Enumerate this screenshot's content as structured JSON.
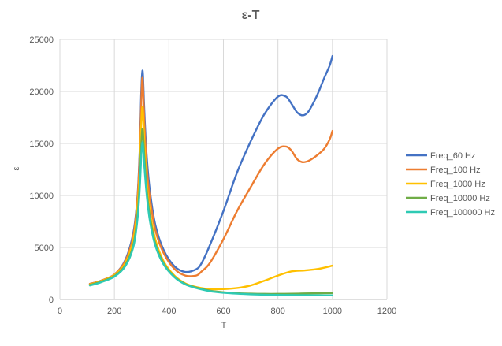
{
  "chart_data": {
    "type": "scatter",
    "title": "ε-T",
    "xlabel": "T",
    "ylabel": "ε",
    "xlim": [
      0,
      1200
    ],
    "ylim": [
      0,
      25000
    ],
    "x_ticks": [
      0,
      200,
      400,
      600,
      800,
      1000,
      1200
    ],
    "y_ticks": [
      0,
      5000,
      10000,
      15000,
      20000,
      25000
    ],
    "x_tick_labels": [
      "0",
      "200",
      "400",
      "600",
      "800",
      "1000",
      "1200"
    ],
    "y_tick_labels": [
      "0",
      "5000",
      "10000",
      "15000",
      "20000",
      "25000"
    ],
    "grid": true,
    "legend_position": "right",
    "series": [
      {
        "name": "Freq_60 Hz",
        "color": "#4472C4",
        "x": [
          110,
          150,
          200,
          240,
          270,
          285,
          293,
          298,
          302,
          305,
          310,
          318,
          330,
          350,
          380,
          420,
          460,
          500,
          520,
          550,
          600,
          650,
          700,
          750,
          800,
          830,
          850,
          870,
          890,
          910,
          930,
          950,
          970,
          990,
          1000
        ],
        "y": [
          1500,
          1800,
          2400,
          3800,
          6500,
          10000,
          14500,
          19500,
          21800,
          21500,
          18000,
          14000,
          10500,
          7200,
          4800,
          3200,
          2650,
          2900,
          3500,
          5200,
          8500,
          12200,
          15200,
          17800,
          19500,
          19500,
          18800,
          18000,
          17700,
          18000,
          18900,
          20000,
          21300,
          22500,
          23400
        ]
      },
      {
        "name": "Freq_100 Hz",
        "color": "#ED7D31",
        "x": [
          110,
          150,
          200,
          240,
          270,
          285,
          293,
          298,
          302,
          305,
          310,
          318,
          330,
          350,
          380,
          420,
          460,
          500,
          520,
          550,
          600,
          650,
          700,
          750,
          800,
          830,
          850,
          870,
          890,
          910,
          930,
          950,
          970,
          990,
          1000
        ],
        "y": [
          1500,
          1800,
          2400,
          3700,
          6200,
          9800,
          14000,
          18500,
          21200,
          20500,
          17000,
          13000,
          9800,
          6700,
          4500,
          2950,
          2300,
          2300,
          2700,
          3500,
          5800,
          8500,
          10800,
          13000,
          14500,
          14700,
          14300,
          13500,
          13200,
          13300,
          13600,
          14000,
          14500,
          15400,
          16200
        ]
      },
      {
        "name": "Freq_1000 Hz",
        "color": "#FFC000",
        "x": [
          110,
          150,
          200,
          240,
          270,
          285,
          293,
          298,
          302,
          305,
          310,
          318,
          330,
          350,
          380,
          420,
          460,
          500,
          550,
          600,
          650,
          700,
          750,
          800,
          850,
          900,
          950,
          1000
        ],
        "y": [
          1450,
          1750,
          2350,
          3500,
          5800,
          9000,
          12500,
          16500,
          18400,
          18000,
          15000,
          11500,
          8500,
          5800,
          3700,
          2300,
          1550,
          1200,
          1000,
          1000,
          1100,
          1350,
          1800,
          2300,
          2700,
          2800,
          2950,
          3250
        ]
      },
      {
        "name": "Freq_10000 Hz",
        "color": "#70AD47",
        "x": [
          110,
          150,
          200,
          240,
          270,
          285,
          293,
          298,
          302,
          305,
          310,
          318,
          330,
          350,
          380,
          420,
          460,
          500,
          550,
          600,
          650,
          700,
          750,
          800,
          850,
          900,
          950,
          1000
        ],
        "y": [
          1400,
          1700,
          2250,
          3300,
          5300,
          8200,
          11300,
          14500,
          16300,
          16000,
          13700,
          10700,
          8000,
          5400,
          3500,
          2200,
          1500,
          1150,
          850,
          700,
          600,
          560,
          540,
          540,
          550,
          580,
          600,
          620
        ]
      },
      {
        "name": "Freq_100000 Hz",
        "color": "#2ECAB4",
        "x": [
          110,
          150,
          200,
          240,
          270,
          285,
          293,
          298,
          302,
          305,
          310,
          318,
          330,
          350,
          380,
          420,
          460,
          500,
          550,
          600,
          650,
          700,
          750,
          800,
          850,
          900,
          950,
          1000
        ],
        "y": [
          1350,
          1650,
          2200,
          3200,
          5100,
          7800,
          10700,
          13500,
          15000,
          14800,
          12800,
          10200,
          7600,
          5200,
          3400,
          2150,
          1450,
          1100,
          800,
          650,
          560,
          500,
          460,
          440,
          430,
          420,
          410,
          400
        ]
      }
    ]
  }
}
